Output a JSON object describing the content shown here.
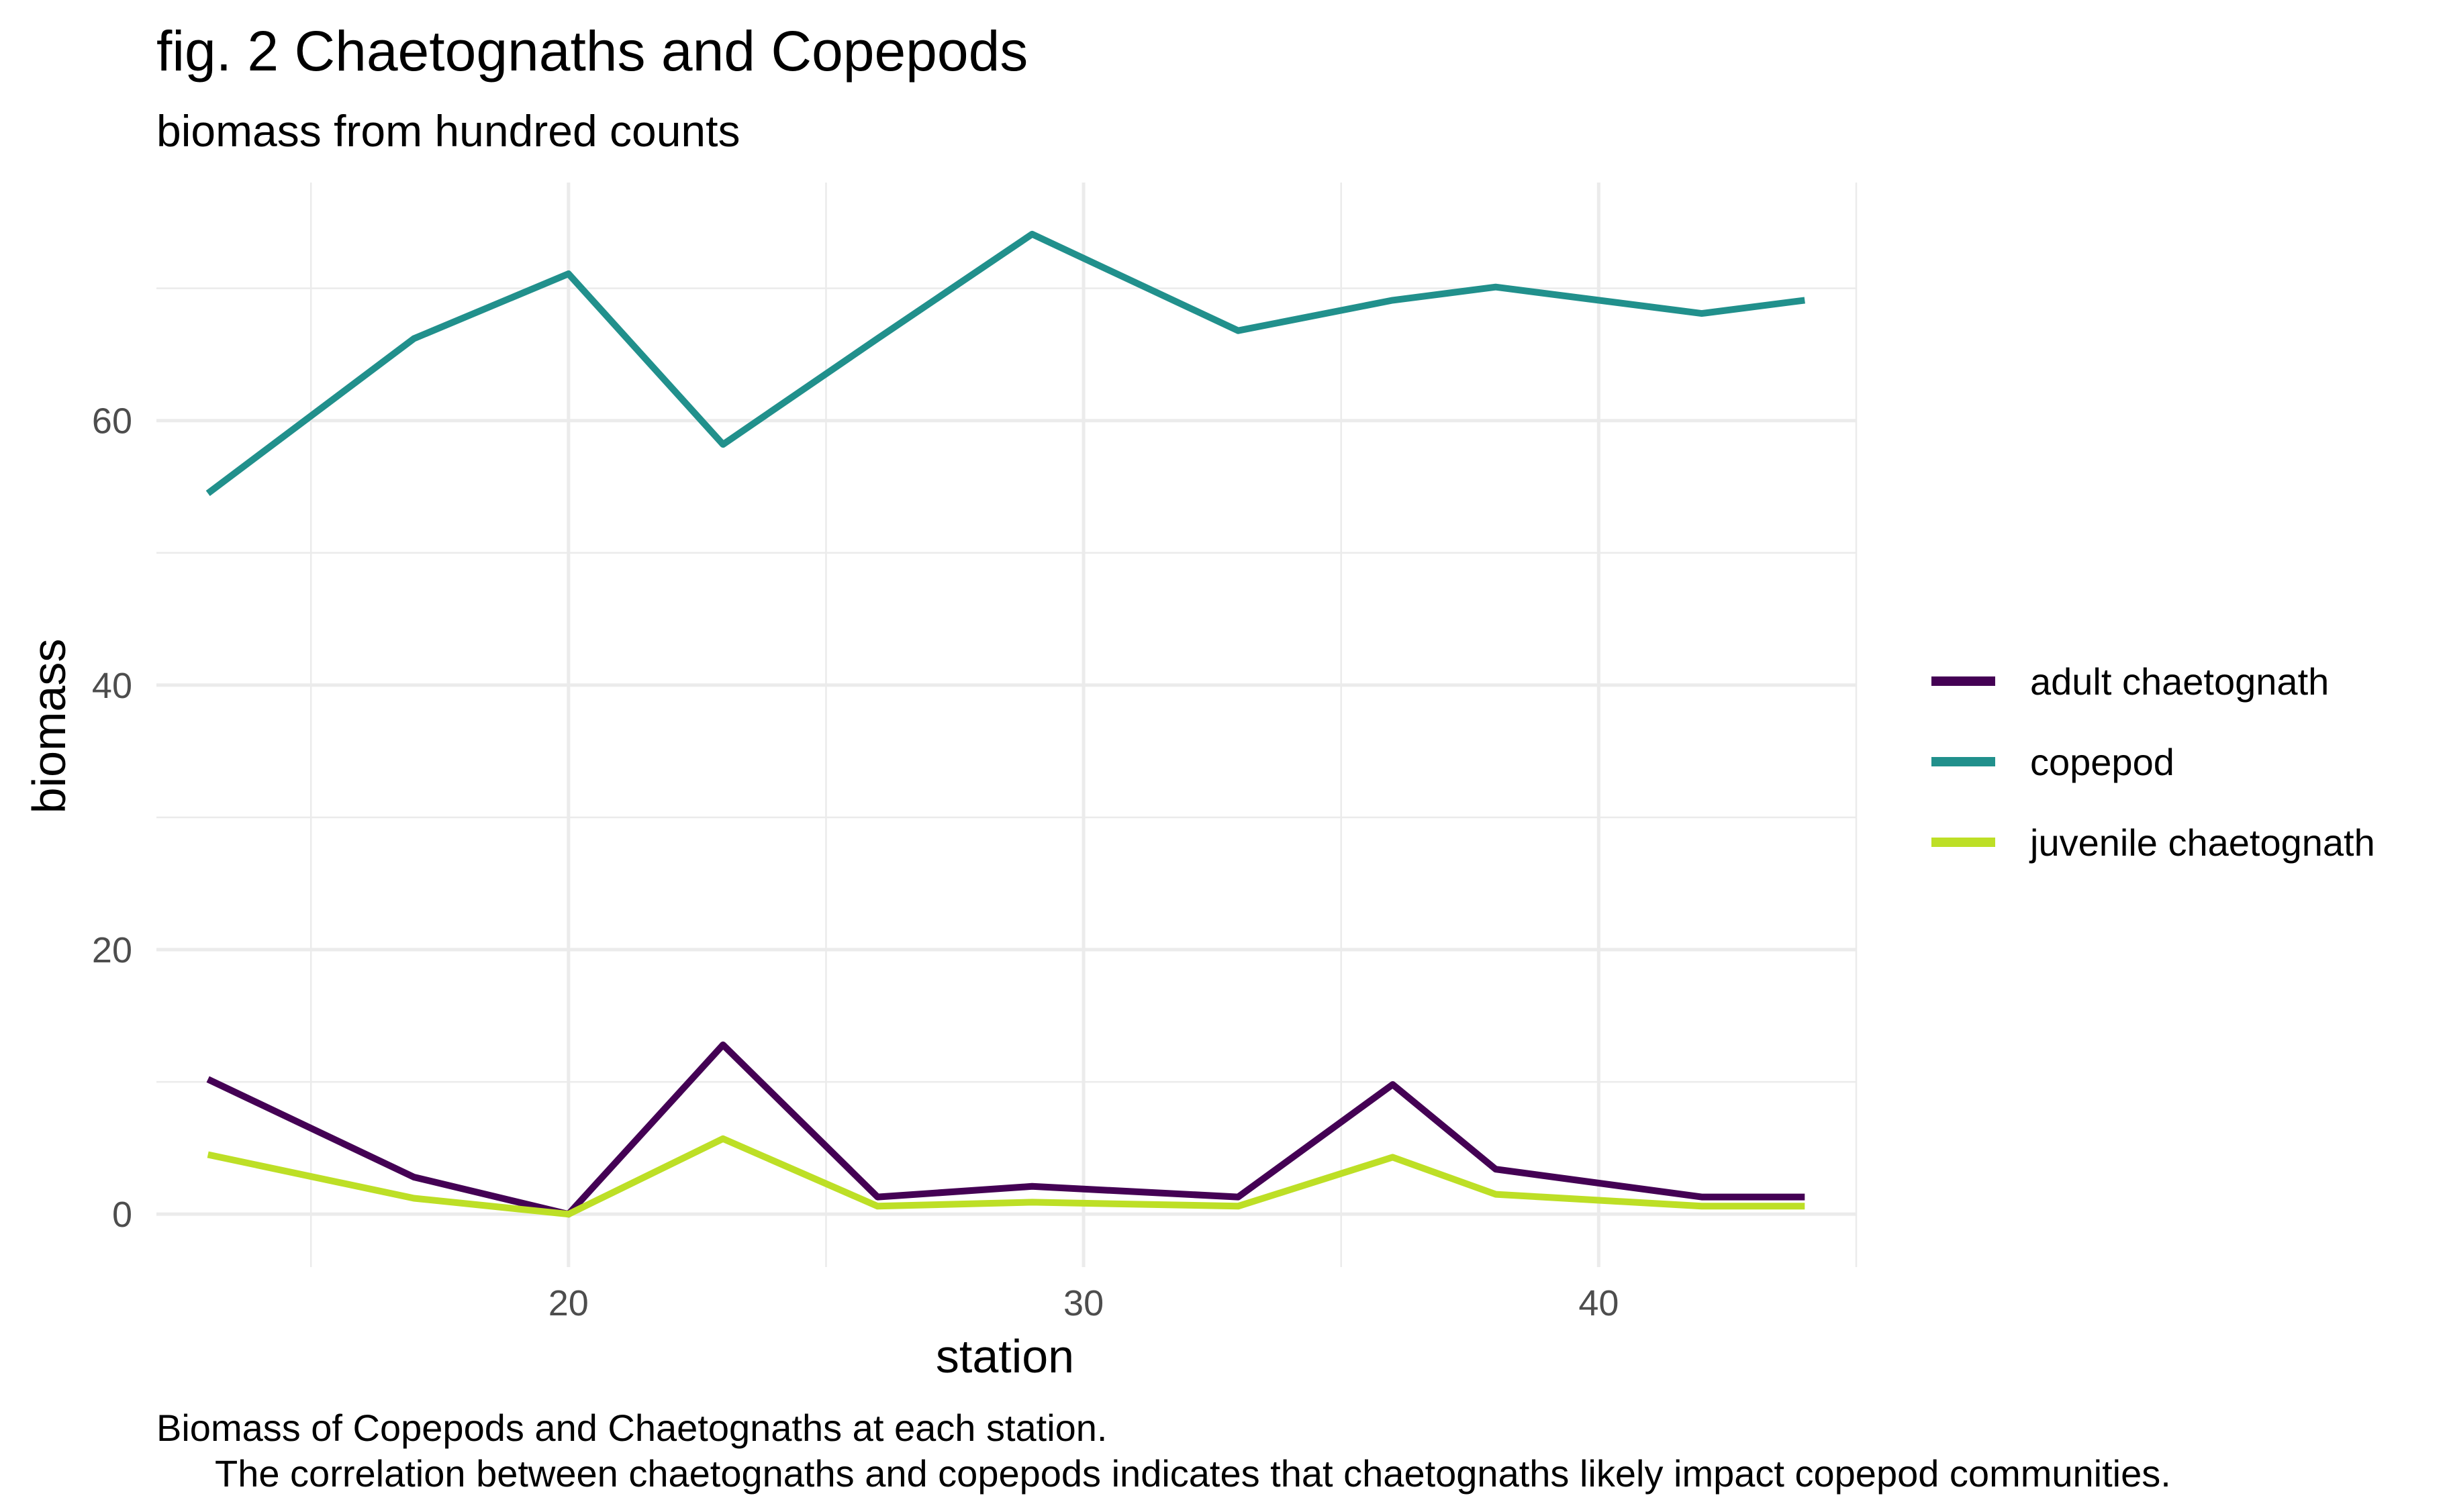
{
  "chart_data": {
    "type": "line",
    "title": "fig. 2 Chaetognaths and Copepods",
    "subtitle": "biomass from hundred counts",
    "xlabel": "station",
    "ylabel": "biomass",
    "xlim": [
      12,
      45
    ],
    "ylim": [
      -4,
      78
    ],
    "x_ticks": [
      20,
      30,
      40
    ],
    "x_minor_ticks": [
      15,
      25,
      35,
      45
    ],
    "y_ticks": [
      0,
      20,
      40,
      60
    ],
    "y_minor_ticks": [
      10,
      30,
      50,
      70
    ],
    "grid": true,
    "legend_position": "right",
    "series": [
      {
        "name": "adult chaetognath",
        "color": "#440154",
        "x": [
          13,
          17,
          20,
          23,
          26,
          29,
          33,
          36,
          38,
          42,
          44
        ],
        "y": [
          10.2,
          2.8,
          0,
          12.8,
          1.3,
          2.1,
          1.3,
          9.8,
          3.4,
          1.3,
          1.3
        ]
      },
      {
        "name": "copepod",
        "color": "#21908c",
        "x": [
          13,
          17,
          20,
          23,
          26,
          29,
          33,
          36,
          38,
          42,
          44
        ],
        "y": [
          54.5,
          66.2,
          71.1,
          58.2,
          66.2,
          74.1,
          66.8,
          69.1,
          70.1,
          68.1,
          69.1
        ]
      },
      {
        "name": "juvenile chaetognath",
        "color": "#bddf26",
        "x": [
          13,
          17,
          20,
          23,
          26,
          29,
          33,
          36,
          38,
          42,
          44
        ],
        "y": [
          4.5,
          1.2,
          0,
          5.7,
          0.6,
          0.9,
          0.6,
          4.3,
          1.5,
          0.6,
          0.6
        ]
      }
    ]
  },
  "caption": {
    "line1": "Biomass of Copepods and Chaetognaths at each station.",
    "line2": "The correlation between chaetognaths and copepods indicates that chaetognaths likely impact copepod communities."
  }
}
